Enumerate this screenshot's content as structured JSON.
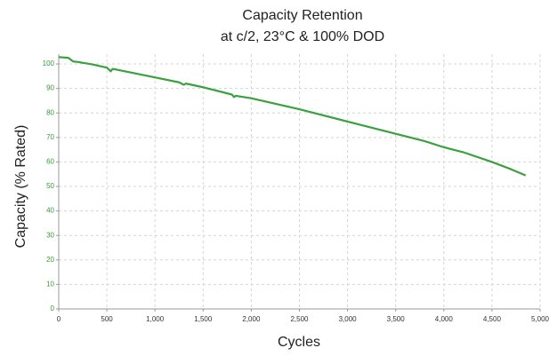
{
  "chart_data": {
    "type": "line",
    "title": "Capacity Retention",
    "subtitle": "at c/2, 23°C & 100% DOD",
    "x_label": "Cycles",
    "y_label": "Capacity (% Rated)",
    "xlim": [
      0,
      5000
    ],
    "ylim": [
      0,
      104
    ],
    "xticks": [
      0,
      500,
      {
        "value": 1000,
        "label": "1,000"
      },
      {
        "value": 1500,
        "label": "1,500"
      },
      {
        "value": 2000,
        "label": "2,000"
      },
      {
        "value": 2500,
        "label": "2,500"
      },
      {
        "value": 3000,
        "label": "3,000"
      },
      {
        "value": 3500,
        "label": "3,500"
      },
      {
        "value": 4000,
        "label": "4,000"
      },
      {
        "value": 4500,
        "label": "4,500"
      },
      {
        "value": 5000,
        "label": "5,000"
      }
    ],
    "yticks": [
      0,
      10,
      20,
      30,
      40,
      50,
      60,
      70,
      80,
      90,
      100
    ],
    "grid": true,
    "series": [
      {
        "name": "Capacity",
        "color": "#3aa040",
        "x": [
          0,
          100,
          150,
          200,
          350,
          500,
          540,
          560,
          750,
          1000,
          1250,
          1300,
          1320,
          1500,
          1800,
          1820,
          1840,
          2000,
          2500,
          3000,
          3500,
          3800,
          4000,
          4200,
          4500,
          4700,
          4850
        ],
        "values": [
          102.8,
          102.5,
          101,
          100.8,
          99.8,
          98.5,
          97,
          98,
          96.5,
          94.5,
          92.5,
          91.5,
          92,
          90.5,
          87.5,
          86.5,
          87,
          86,
          81.5,
          76.5,
          71.5,
          68.5,
          66,
          64,
          60,
          57,
          54.5
        ]
      }
    ]
  }
}
